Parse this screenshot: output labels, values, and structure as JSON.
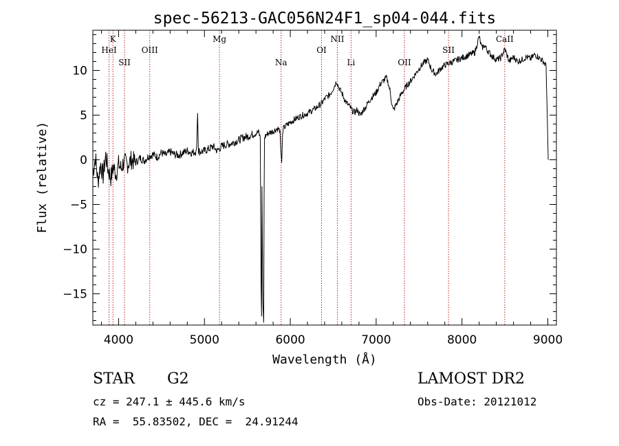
{
  "chart_data": {
    "type": "line",
    "title": "spec-56213-GAC056N24F1_sp04-044.fits",
    "xlabel": "Wavelength (Å)",
    "ylabel": "Flux (relative)",
    "xlim": [
      3700,
      9100
    ],
    "ylim": [
      -18.5,
      14.5
    ],
    "xticks": [
      4000,
      5000,
      6000,
      7000,
      8000,
      9000
    ],
    "yticks": [
      -15,
      -10,
      -5,
      0,
      5,
      10
    ],
    "line_color": "#000000",
    "marker_color": "#b22222",
    "series": [
      {
        "x": [
          3700,
          3730,
          3760,
          3790,
          3820,
          3850,
          3880,
          3910,
          3940,
          3970,
          4000,
          4030,
          4060,
          4100,
          4150,
          4200,
          4250,
          4300,
          4350,
          4400,
          4450,
          4500,
          4550,
          4600,
          4650,
          4700,
          4750,
          4800,
          4850,
          4900,
          4910,
          4920,
          4930,
          4950,
          5000,
          5050,
          5100,
          5150,
          5200,
          5250,
          5300,
          5350,
          5400,
          5450,
          5500,
          5550,
          5600,
          5630,
          5650,
          5660,
          5665,
          5670,
          5680,
          5690,
          5695,
          5700,
          5720,
          5750,
          5800,
          5850,
          5880,
          5890,
          5900,
          5910,
          5920,
          5950,
          6000,
          6050,
          6100,
          6150,
          6200,
          6250,
          6300,
          6350,
          6380,
          6400,
          6420,
          6450,
          6480,
          6500,
          6520,
          6540,
          6560,
          6580,
          6600,
          6630,
          6660,
          6690,
          6720,
          6750,
          6780,
          6800,
          6820,
          6850,
          6880,
          6900,
          6920,
          6950,
          7000,
          7050,
          7100,
          7120,
          7140,
          7160,
          7180,
          7200,
          7250,
          7300,
          7350,
          7400,
          7450,
          7500,
          7550,
          7600,
          7650,
          7700,
          7750,
          7800,
          7850,
          7900,
          7950,
          8000,
          8050,
          8100,
          8150,
          8200,
          8230,
          8260,
          8300,
          8350,
          8400,
          8450,
          8500,
          8550,
          8600,
          8650,
          8700,
          8750,
          8800,
          8850,
          8900,
          8950,
          8980,
          9000,
          9005
        ],
        "y": [
          -1.5,
          0.3,
          -2.5,
          -0.5,
          -1.8,
          0.5,
          -1.2,
          -2.0,
          -0.8,
          -1.6,
          -0.5,
          -1.0,
          -0.2,
          -0.5,
          0.0,
          -0.3,
          0.2,
          -0.1,
          0.4,
          0.6,
          0.3,
          0.8,
          0.5,
          0.9,
          0.6,
          0.5,
          0.8,
          1.0,
          0.8,
          0.9,
          1.5,
          5.2,
          1.0,
          0.9,
          1.0,
          1.2,
          1.5,
          1.0,
          1.5,
          1.7,
          1.8,
          2.0,
          2.2,
          2.5,
          2.6,
          2.8,
          3.0,
          3.1,
          2.5,
          -14.0,
          -17.5,
          -3.0,
          -16.0,
          -18.2,
          -4.0,
          2.5,
          2.8,
          3.0,
          3.2,
          3.5,
          3.3,
          1.0,
          -0.3,
          2.8,
          3.5,
          3.8,
          4.2,
          4.5,
          4.8,
          5.0,
          5.2,
          5.5,
          5.8,
          6.2,
          6.5,
          6.8,
          7.0,
          7.2,
          7.6,
          8.0,
          8.4,
          8.8,
          8.2,
          7.8,
          7.5,
          6.8,
          6.3,
          6.0,
          5.5,
          5.3,
          5.6,
          5.2,
          5.0,
          5.6,
          5.9,
          6.3,
          6.6,
          7.0,
          7.5,
          8.5,
          9.0,
          9.2,
          8.6,
          7.8,
          6.5,
          5.5,
          6.5,
          7.5,
          8.2,
          8.8,
          9.5,
          10.2,
          10.8,
          11.2,
          10.0,
          9.6,
          10.2,
          10.6,
          10.8,
          11.0,
          11.2,
          11.4,
          11.6,
          11.8,
          12.0,
          13.8,
          12.5,
          12.8,
          12.2,
          11.6,
          11.2,
          11.4,
          12.4,
          11.0,
          11.5,
          11.0,
          11.2,
          11.5,
          11.3,
          11.8,
          11.4,
          11.0,
          10.5,
          2.0,
          0.0
        ]
      }
    ],
    "line_markers": [
      {
        "label": "K",
        "x": 3934,
        "row": 1
      },
      {
        "label": "HeI",
        "x": 3889,
        "row": 2
      },
      {
        "label": "SII",
        "x": 4069,
        "row": 3
      },
      {
        "label": "OIII",
        "x": 4363,
        "row": 2
      },
      {
        "label": "Mg",
        "x": 5175,
        "row": 1
      },
      {
        "label": "Na",
        "x": 5893,
        "row": 3
      },
      {
        "label": "OI",
        "x": 6364,
        "row": 2
      },
      {
        "label": "NII",
        "x": 6548,
        "row": 1
      },
      {
        "label": "Li",
        "x": 6708,
        "row": 3
      },
      {
        "label": "OII",
        "x": 7330,
        "row": 3
      },
      {
        "label": "SII",
        "x": 7843,
        "row": 2
      },
      {
        "label": "CaII",
        "x": 8498,
        "row": 1
      }
    ]
  },
  "footer": {
    "class_label": "STAR",
    "subclass_label": "G2",
    "survey": "LAMOST DR2",
    "cz_line": "cz = 247.1 ± 445.6 km/s",
    "obs_date_line": "Obs-Date: 20121012",
    "coords_line": "RA =  55.83502, DEC =  24.91244"
  }
}
